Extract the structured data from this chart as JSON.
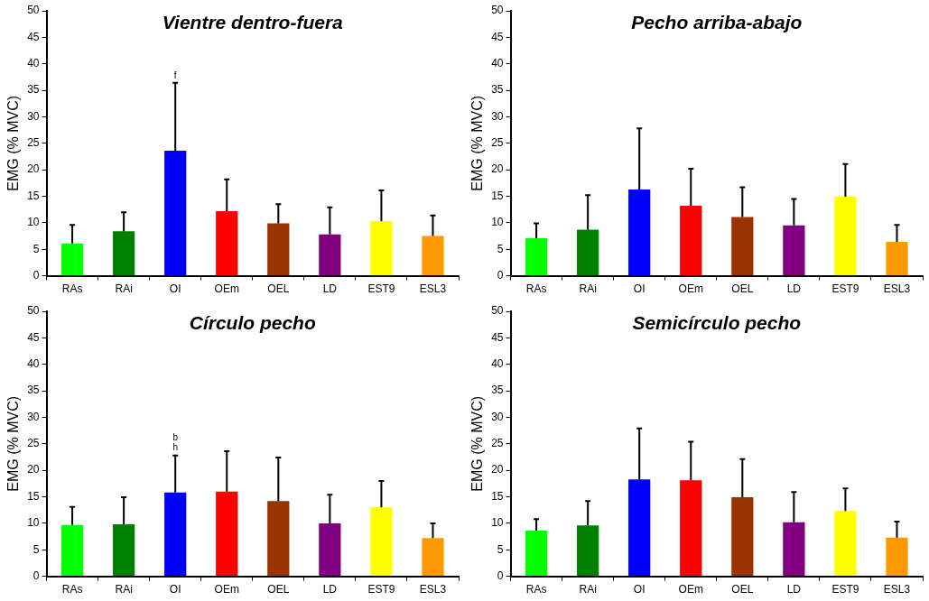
{
  "chart_data": [
    {
      "type": "bar",
      "title": "Vientre dentro-fuera",
      "ylabel": "EMG (% MVC)",
      "categories": [
        "RAs",
        "RAi",
        "OI",
        "OEm",
        "OEL",
        "LD",
        "EST9",
        "ESL3"
      ],
      "colors": [
        "#00ff00",
        "#008000",
        "#0000ff",
        "#ff0000",
        "#993300",
        "#800080",
        "#ffff00",
        "#ff9900"
      ],
      "values": [
        6.1,
        8.4,
        23.6,
        12.2,
        9.9,
        7.8,
        10.3,
        7.5
      ],
      "errors": [
        [
          6.1,
          9.6
        ],
        [
          8.4,
          12.0
        ],
        [
          23.6,
          36.4
        ],
        [
          12.2,
          18.2
        ],
        [
          9.9,
          13.5
        ],
        [
          7.8,
          12.9
        ],
        [
          10.3,
          16.1
        ],
        [
          7.5,
          11.4
        ]
      ],
      "ylim": [
        0,
        50
      ],
      "yticks": [
        0,
        5,
        10,
        15,
        20,
        25,
        30,
        35,
        40,
        45,
        50
      ],
      "legend": false,
      "annotations": [
        "f"
      ]
    },
    {
      "type": "bar",
      "title": "Pecho arriba-abajo",
      "ylabel": "EMG (% MVC)",
      "categories": [
        "RAs",
        "RAi",
        "OI",
        "OEm",
        "OEL",
        "LD",
        "EST9",
        "ESL3"
      ],
      "colors": [
        "#00ff00",
        "#008000",
        "#0000ff",
        "#ff0000",
        "#993300",
        "#800080",
        "#ffff00",
        "#ff9900"
      ],
      "values": [
        7.1,
        8.7,
        16.3,
        13.2,
        11.1,
        9.5,
        14.9,
        6.4
      ],
      "errors": [
        [
          7.1,
          9.9
        ],
        [
          8.7,
          15.2
        ],
        [
          16.3,
          27.8
        ],
        [
          13.2,
          20.2
        ],
        [
          11.1,
          16.7
        ],
        [
          9.5,
          14.5
        ],
        [
          14.9,
          21.1
        ],
        [
          6.4,
          9.6
        ]
      ],
      "ylim": [
        0,
        50
      ],
      "yticks": [
        0,
        5,
        10,
        15,
        20,
        25,
        30,
        35,
        40,
        45,
        50
      ],
      "legend": false
    },
    {
      "type": "bar",
      "title": "Círculo pecho",
      "ylabel": "EMG (% MVC)",
      "categories": [
        "RAs",
        "RAi",
        "OI",
        "OEm",
        "OEL",
        "LD",
        "EST9",
        "ESL3"
      ],
      "colors": [
        "#00ff00",
        "#008000",
        "#0000ff",
        "#ff0000",
        "#993300",
        "#800080",
        "#ffff00",
        "#ff9900"
      ],
      "values": [
        9.7,
        9.8,
        15.8,
        16.0,
        14.2,
        10.0,
        13.0,
        7.2
      ],
      "errors": [
        [
          9.7,
          13.1
        ],
        [
          9.8,
          14.9
        ],
        [
          15.8,
          22.8
        ],
        [
          16.0,
          23.6
        ],
        [
          14.2,
          22.4
        ],
        [
          10.0,
          15.4
        ],
        [
          13.0,
          18.0
        ],
        [
          7.2,
          10.0
        ]
      ],
      "ylim": [
        0,
        50
      ],
      "yticks": [
        0,
        5,
        10,
        15,
        20,
        25,
        30,
        35,
        40,
        45,
        50
      ],
      "legend": false,
      "annotations": [
        "h",
        "b"
      ]
    },
    {
      "type": "bar",
      "title": "Semicírculo pecho",
      "ylabel": "EMG (% MVC)",
      "categories": [
        "RAs",
        "RAi",
        "OI",
        "OEm",
        "OEL",
        "LD",
        "EST9",
        "ESL3"
      ],
      "colors": [
        "#00ff00",
        "#008000",
        "#0000ff",
        "#ff0000",
        "#993300",
        "#800080",
        "#ffff00",
        "#ff9900"
      ],
      "values": [
        8.6,
        9.6,
        18.3,
        18.1,
        14.9,
        10.2,
        12.3,
        7.3
      ],
      "errors": [
        [
          8.6,
          10.8
        ],
        [
          9.6,
          14.2
        ],
        [
          18.3,
          27.9
        ],
        [
          18.1,
          25.4
        ],
        [
          14.9,
          22.1
        ],
        [
          10.2,
          15.9
        ],
        [
          12.3,
          16.6
        ],
        [
          7.3,
          10.3
        ]
      ],
      "ylim": [
        0,
        50
      ],
      "yticks": [
        0,
        5,
        10,
        15,
        20,
        25,
        30,
        35,
        40,
        45,
        50
      ],
      "legend": false
    }
  ]
}
